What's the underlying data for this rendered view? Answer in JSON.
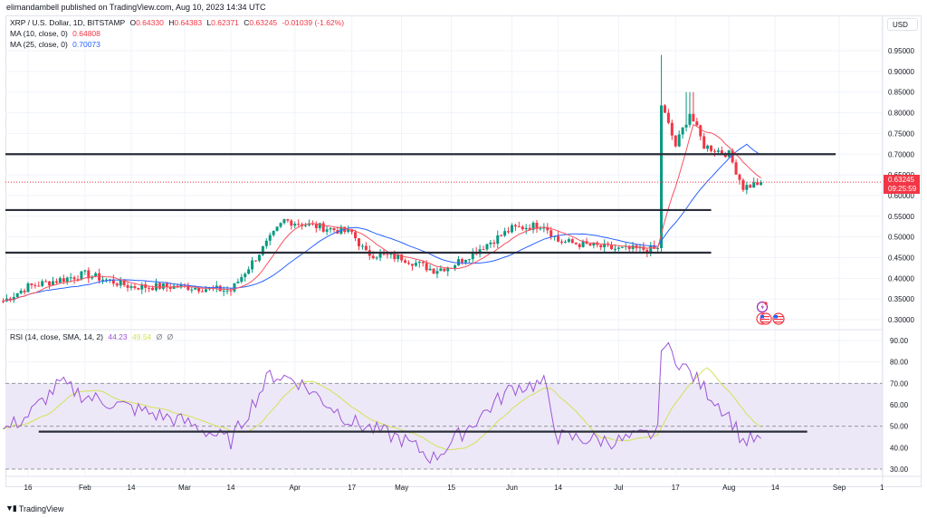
{
  "header": {
    "published": "elimandambell published on TradingView.com, Aug 10, 2023 14:34 UTC"
  },
  "legend": {
    "symbol": "XRP / U.S. Dollar, 1D, BITSTAMP",
    "o_label": "O",
    "o": "0.64330",
    "h_label": "H",
    "h": "0.64383",
    "l_label": "L",
    "l": "0.62371",
    "c_label": "C",
    "c": "0.63245",
    "change": "-0.01039 (-1.62%)",
    "ma10_label": "MA (10, close, 0)",
    "ma10": "0.64808",
    "ma25_label": "MA (25, close, 0)",
    "ma25": "0.70073",
    "rsi_label": "RSI (14, close, SMA, 14, 2)",
    "rsi": "44.23",
    "rsi_ma": "49.54",
    "rsi_extra1": "Ø",
    "rsi_extra2": "Ø"
  },
  "price_axis": {
    "currency": "USD",
    "ticks": [
      "0.95000",
      "0.90000",
      "0.85000",
      "0.80000",
      "0.75000",
      "0.70000",
      "0.65000",
      "0.60000",
      "0.55000",
      "0.50000",
      "0.45000",
      "0.40000",
      "0.35000",
      "0.30000"
    ],
    "last_price": "0.63245",
    "countdown": "09:25:59"
  },
  "rsi_axis": {
    "ticks": [
      "90.00",
      "80.00",
      "70.00",
      "60.00",
      "50.00",
      "40.00",
      "30.00"
    ]
  },
  "time_axis": {
    "ticks": [
      "16",
      "Feb",
      "14",
      "Mar",
      "14",
      "Apr",
      "17",
      "May",
      "15",
      "Jun",
      "14",
      "Jul",
      "17",
      "Aug",
      "14",
      "Sep",
      "1"
    ]
  },
  "footer": {
    "brand": "TradingView"
  },
  "colors": {
    "up": "#089981",
    "down": "#f23645",
    "ma10": "#f7525f",
    "ma25": "#2962ff",
    "rsi": "#9c55d8",
    "rsi_ma": "#d4e157",
    "rsi_band": "#ede8f7",
    "hline": "#2a2e39"
  },
  "chart_data": [
    {
      "type": "candlestick",
      "title": "XRP / U.S. Dollar, 1D, BITSTAMP",
      "xlabel": "",
      "ylabel": "USD",
      "ylim": [
        0.28,
        0.97
      ],
      "x_ticks": [
        "16",
        "Feb",
        "14",
        "Mar",
        "14",
        "Apr",
        "17",
        "May",
        "15",
        "Jun",
        "14",
        "Jul",
        "17",
        "Aug",
        "14",
        "Sep",
        "1"
      ],
      "last": {
        "open": 0.6433,
        "high": 0.64383,
        "low": 0.62371,
        "close": 0.63245,
        "change": -0.01039,
        "change_pct": -1.62
      },
      "series": [
        {
          "name": "MA (10, close, 0)",
          "last": 0.64808,
          "color": "#f7525f"
        },
        {
          "name": "MA (25, close, 0)",
          "last": 0.70073,
          "color": "#2962ff"
        }
      ],
      "horizontal_levels": [
        {
          "price": 0.7,
          "x_start": "Jan 9",
          "x_end": "Aug 31"
        },
        {
          "price": 0.565,
          "x_start": "Jan 9",
          "x_end": "Jul 27"
        },
        {
          "price": 0.462,
          "x_start": "Jan 9",
          "x_end": "Jul 27"
        }
      ],
      "approx_closes": {
        "Jan 16": 0.38,
        "Feb 1": 0.41,
        "Feb 14": 0.38,
        "Mar 1": 0.38,
        "Mar 14": 0.37,
        "Mar 21": 0.45,
        "Mar 29": 0.54,
        "Apr 17": 0.51,
        "Apr 21": 0.46,
        "May 1": 0.45,
        "May 10": 0.42,
        "May 15": 0.43,
        "Jun 1": 0.52,
        "Jun 10": 0.53,
        "Jun 14": 0.49,
        "Jul 1": 0.47,
        "Jul 12": 0.47,
        "Jul 13": 0.82,
        "Jul 17": 0.72,
        "Jul 21": 0.8,
        "Jul 25": 0.72,
        "Aug 1": 0.7,
        "Aug 5": 0.62,
        "Aug 10": 0.632
      }
    },
    {
      "type": "line",
      "title": "RSI (14, close, SMA, 14, 2)",
      "ylim": [
        27,
        93
      ],
      "y_ticks": [
        90,
        80,
        70,
        60,
        50,
        40,
        30
      ],
      "bands": {
        "upper": 70,
        "middle": 50,
        "lower": 30
      },
      "series": [
        {
          "name": "RSI",
          "last": 44.23,
          "color": "#9c55d8"
        },
        {
          "name": "RSI-based MA",
          "last": 49.54,
          "color": "#d4e157"
        }
      ],
      "horizontal_levels": [
        {
          "value": 47.5,
          "x_start": "Jan 19",
          "x_end": "Aug 23"
        }
      ],
      "approx_values": {
        "Jan 16": 55,
        "Jan 25": 70,
        "Feb 1": 64,
        "Mar 1": 52,
        "Mar 14": 43,
        "Mar 25": 74,
        "Apr 1": 72,
        "Apr 17": 52,
        "May 1": 44,
        "May 10": 35,
        "Jun 1": 68,
        "Jun 10": 70,
        "Jun 14": 45,
        "Jul 1": 43,
        "Jul 12": 47,
        "Jul 13": 89,
        "Jul 21": 75,
        "Aug 1": 55,
        "Aug 5": 43,
        "Aug 10": 44.23
      }
    }
  ]
}
